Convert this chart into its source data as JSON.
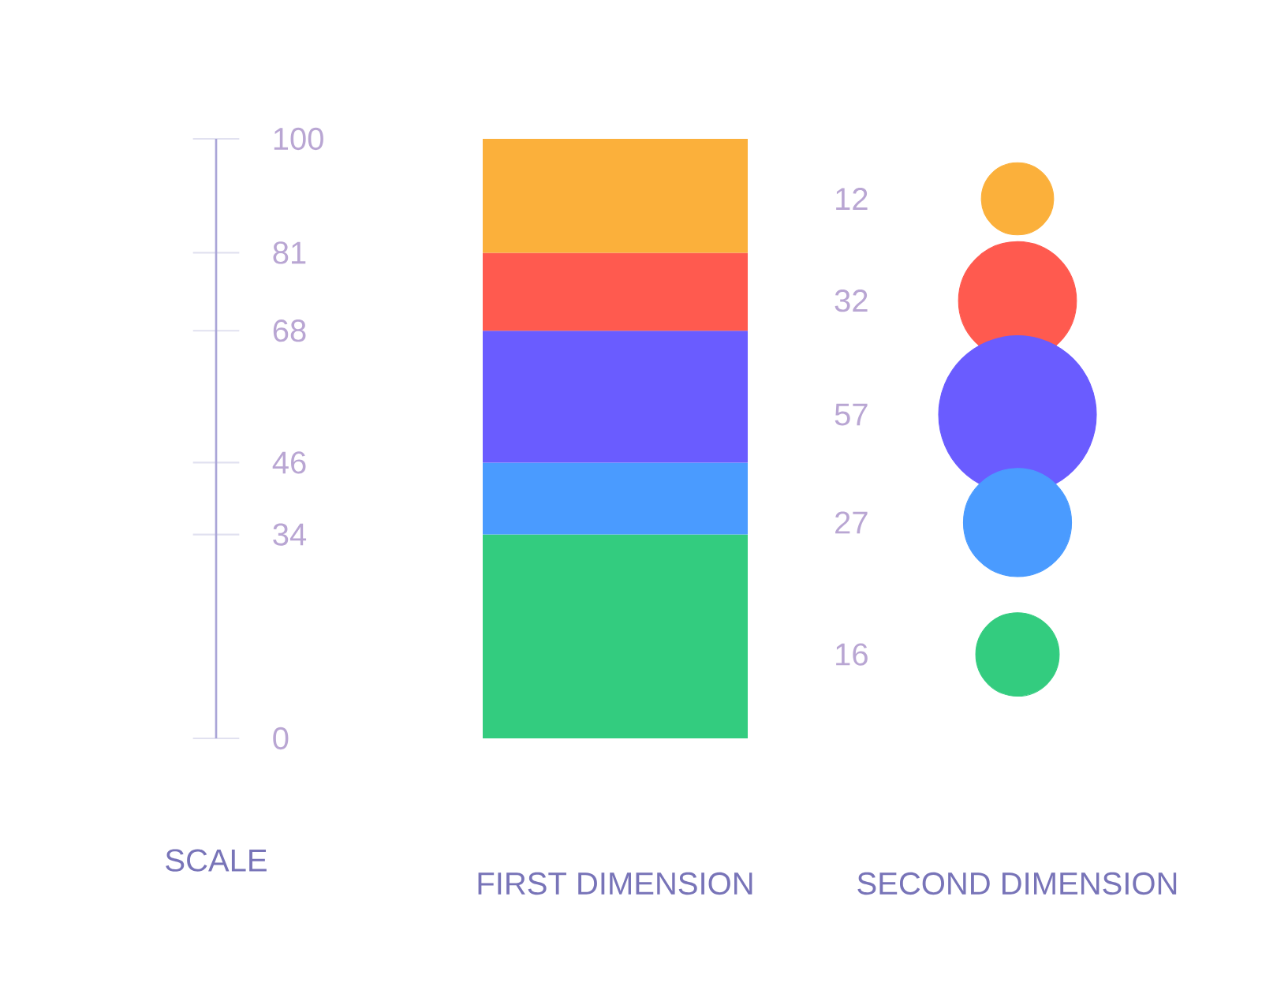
{
  "chart_data": {
    "type": "bar",
    "stacked": true,
    "categories": [
      "FIRST DIMENSION",
      "SECOND DIMENSION"
    ],
    "ylabel": "SCALE",
    "ylim": [
      0,
      100
    ],
    "yticks": [
      0,
      34,
      46,
      68,
      81,
      100
    ],
    "series": [
      {
        "color": "#33cc7f",
        "values": [
          34,
          null
        ]
      },
      {
        "color": "#4a9bff",
        "values": [
          12,
          null
        ]
      },
      {
        "color": "#6a5cff",
        "values": [
          22,
          null
        ]
      },
      {
        "color": "#ff5a4f",
        "values": [
          13,
          null
        ]
      },
      {
        "color": "#fbb03b",
        "values": [
          19,
          null
        ]
      },
      {
        "type": "bubble",
        "x": [
          "SECOND DIMENSION",
          "SECOND DIMENSION",
          "SECOND DIMENSION",
          "SECOND DIMENSION",
          "SECOND DIMENSION"
        ],
        "values": [
          90,
          73,
          54,
          36,
          14
        ],
        "sizes": [
          0.21,
          0.56,
          1,
          0.47,
          0.28
        ],
        "colors": [
          "#fbb03b",
          "#ff5a4f",
          "#6a5cff",
          "#4a9bff",
          "#33cc7f"
        ]
      }
    ],
    "annotations": [
      "12",
      "32",
      "57",
      "27",
      "16"
    ]
  }
}
